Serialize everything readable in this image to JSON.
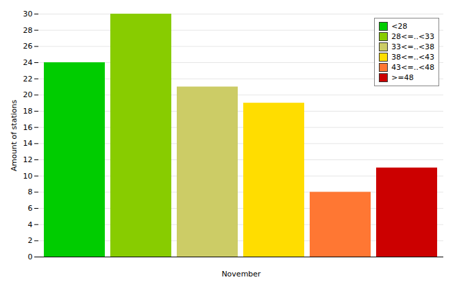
{
  "chart_data": {
    "type": "bar",
    "categories": [
      "<28",
      "28<=..<33",
      "33<=..<38",
      "38<=..<43",
      "43<=..<48",
      ">=48"
    ],
    "values": [
      24,
      30,
      21,
      19,
      8,
      11
    ],
    "colors": [
      "#00cc00",
      "#88cc00",
      "#cccc66",
      "#ffdd00",
      "#ff7733",
      "#cc0000"
    ],
    "xlabel": "November",
    "ylabel": "Amount of stations",
    "ylim": [
      0,
      30
    ],
    "yticks": [
      0,
      2,
      4,
      6,
      8,
      10,
      12,
      14,
      16,
      18,
      20,
      22,
      24,
      26,
      28,
      30
    ],
    "grid": true,
    "legend": "upper right",
    "tick_labels": "y"
  }
}
